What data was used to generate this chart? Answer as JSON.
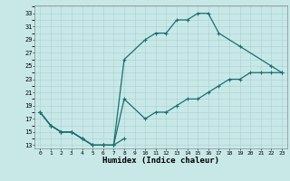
{
  "xlabel": "Humidex (Indice chaleur)",
  "bg_color": "#c8e8e8",
  "line_color": "#1a7070",
  "grid_color": "#a8d0d0",
  "xlim": [
    -0.5,
    23.5
  ],
  "ylim": [
    12.5,
    34.2
  ],
  "yticks": [
    13,
    15,
    17,
    19,
    21,
    23,
    25,
    27,
    29,
    31,
    33
  ],
  "xticks": [
    0,
    1,
    2,
    3,
    4,
    5,
    6,
    7,
    8,
    9,
    10,
    11,
    12,
    13,
    14,
    15,
    16,
    17,
    18,
    19,
    20,
    21,
    22,
    23
  ],
  "upper_x": [
    0,
    1,
    2,
    3,
    4,
    5,
    6,
    7,
    8,
    10,
    11,
    12,
    13,
    14,
    15,
    16,
    17,
    19,
    22,
    23
  ],
  "upper_y": [
    18,
    16,
    15,
    15,
    14,
    13,
    13,
    13,
    26,
    29,
    30,
    30,
    32,
    32,
    33,
    33,
    30,
    28,
    25,
    24
  ],
  "lower_x": [
    0,
    1,
    2,
    3,
    4,
    5,
    6,
    7,
    8,
    10,
    11,
    12,
    13,
    14,
    15,
    16,
    17,
    18,
    19,
    20,
    21,
    22,
    23
  ],
  "lower_y": [
    18,
    16,
    15,
    15,
    14,
    13,
    13,
    13,
    20,
    17,
    18,
    18,
    19,
    20,
    20,
    21,
    22,
    23,
    23,
    24,
    24,
    24,
    24
  ],
  "short_x": [
    0,
    1,
    2,
    3,
    4,
    5,
    6,
    7,
    8
  ],
  "short_y": [
    18,
    16,
    15,
    15,
    14,
    13,
    13,
    13,
    14
  ]
}
